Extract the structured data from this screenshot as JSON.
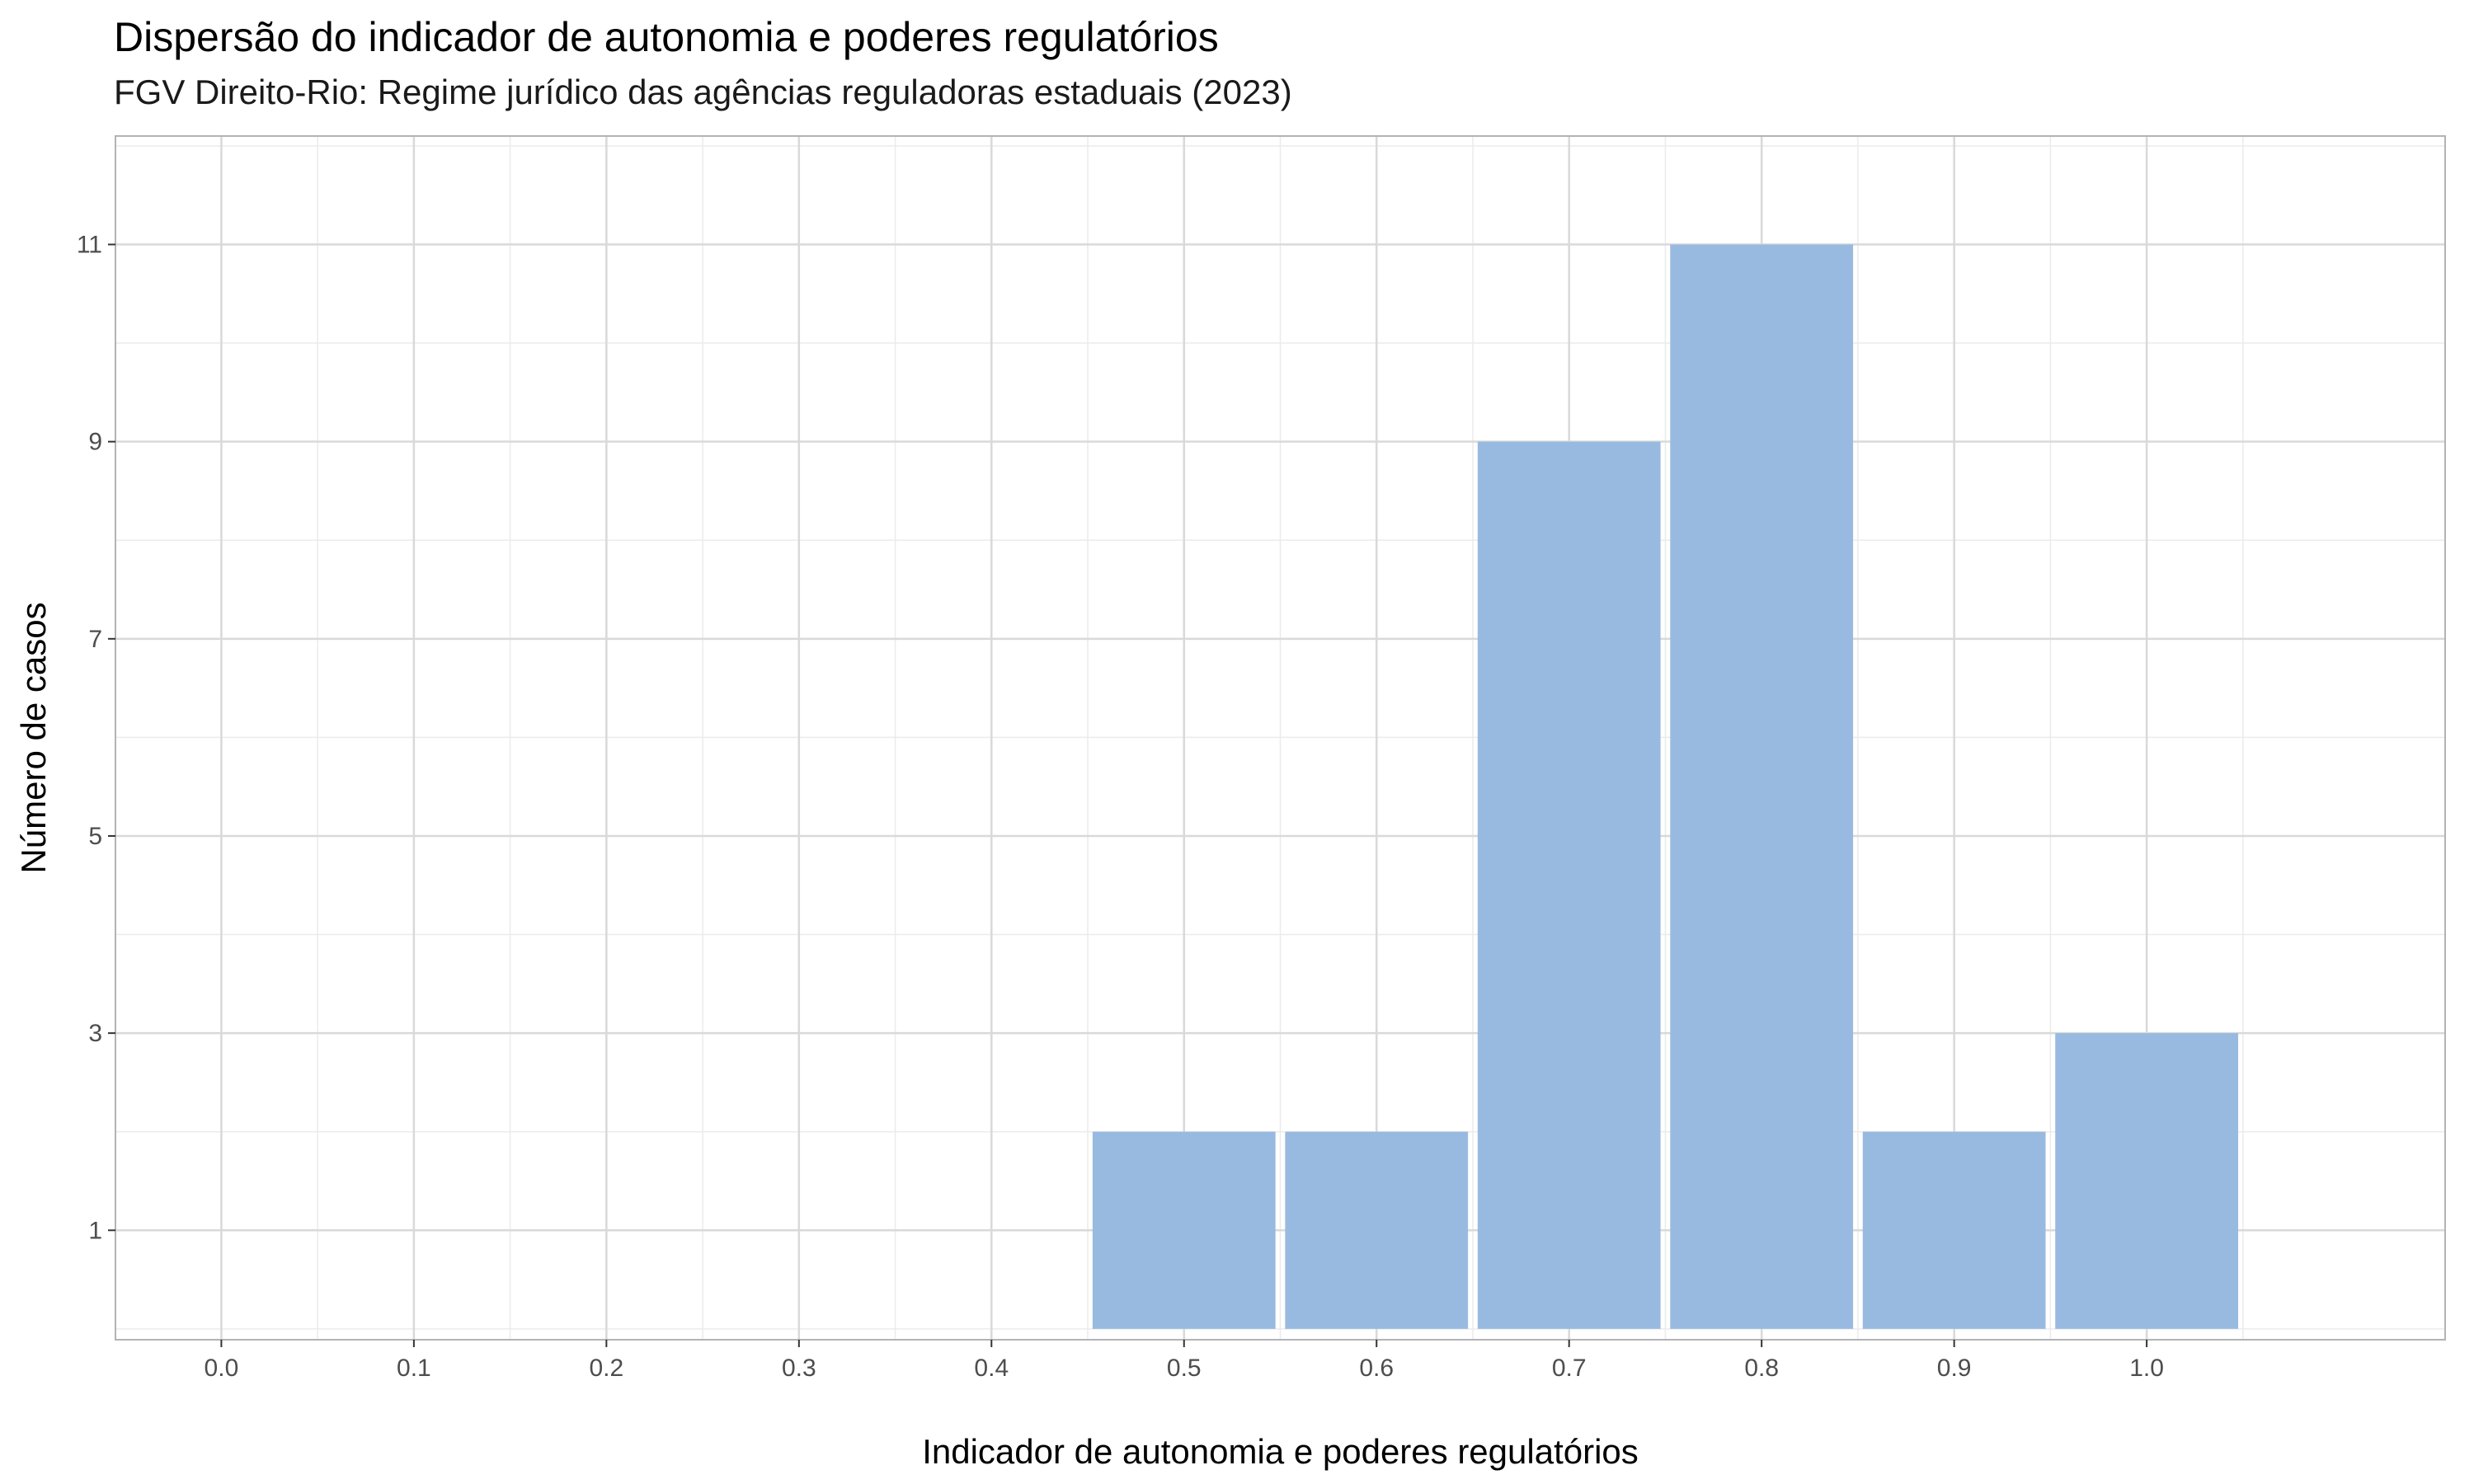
{
  "chart_data": {
    "type": "bar",
    "title": "Dispersão do indicador de autonomia e poderes regulatórios",
    "subtitle": "FGV Direito-Rio: Regime jurídico das agências reguladoras estaduais (2023)",
    "xlabel": "Indicador de autonomia e poderes regulatórios",
    "ylabel": "Número de casos",
    "categories": [
      0.5,
      0.6,
      0.7,
      0.8,
      0.9,
      1.0
    ],
    "values": [
      2,
      2,
      9,
      11,
      2,
      3
    ],
    "bar_width": 0.095,
    "x_ticks": [
      "0.0",
      "0.1",
      "0.2",
      "0.3",
      "0.4",
      "0.5",
      "0.6",
      "0.7",
      "0.8",
      "0.9",
      "1.0"
    ],
    "y_ticks": [
      "1",
      "3",
      "5",
      "7",
      "9",
      "11"
    ],
    "xlim": [
      -0.055,
      1.155
    ],
    "ylim": [
      -0.11,
      12.1
    ],
    "grid": true,
    "bar_color": "#99bae0",
    "grid_color": "#d9d9d9",
    "minor_grid_color": "#ebebeb",
    "panel_border_color": "#b3b3b3"
  }
}
